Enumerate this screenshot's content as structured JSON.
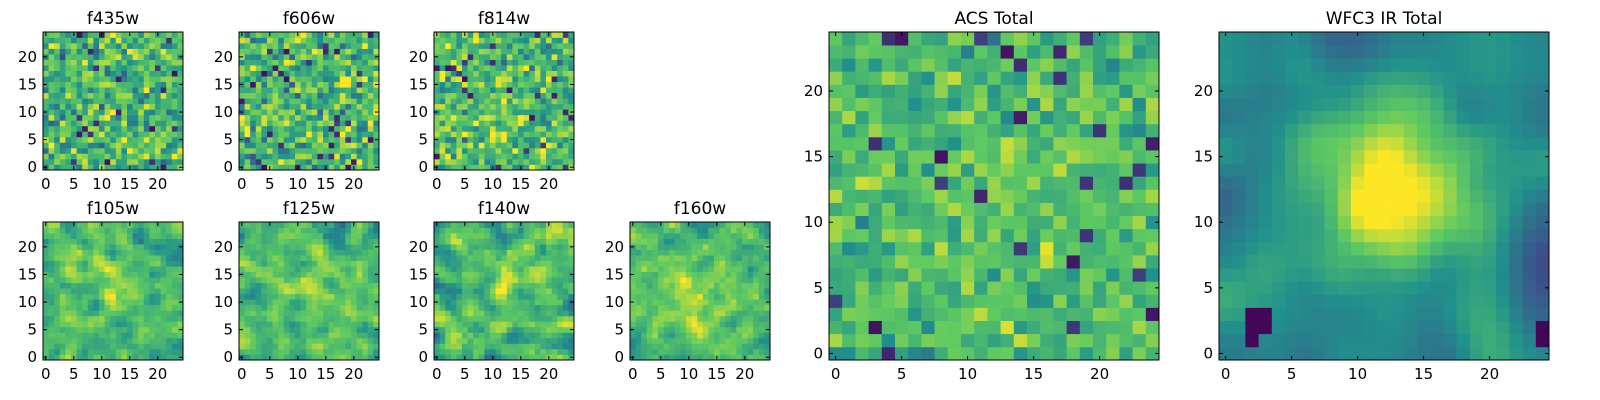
{
  "figure": {
    "colormap": "viridis",
    "colormap_stops": [
      "#440154",
      "#3b528b",
      "#21918c",
      "#5ec962",
      "#fde725"
    ]
  },
  "chart_data": [
    {
      "type": "heatmap",
      "title": "f435w",
      "grid_size": 25,
      "xlim": [
        -0.5,
        24.5
      ],
      "ylim": [
        -0.5,
        24.5
      ],
      "xticks": [
        0,
        5,
        10,
        15,
        20
      ],
      "yticks": [
        0,
        5,
        10,
        15,
        20
      ],
      "pattern": "noise",
      "seed": 11,
      "mean": 0.66,
      "spread": 0.22,
      "blob": 0
    },
    {
      "type": "heatmap",
      "title": "f606w",
      "grid_size": 25,
      "xlim": [
        -0.5,
        24.5
      ],
      "ylim": [
        -0.5,
        24.5
      ],
      "xticks": [
        0,
        5,
        10,
        15,
        20
      ],
      "yticks": [
        0,
        5,
        10,
        15,
        20
      ],
      "pattern": "noise",
      "seed": 23,
      "mean": 0.68,
      "spread": 0.23,
      "blob": 0
    },
    {
      "type": "heatmap",
      "title": "f814w",
      "grid_size": 25,
      "xlim": [
        -0.5,
        24.5
      ],
      "ylim": [
        -0.5,
        24.5
      ],
      "xticks": [
        0,
        5,
        10,
        15,
        20
      ],
      "yticks": [
        0,
        5,
        10,
        15,
        20
      ],
      "pattern": "noise",
      "seed": 37,
      "mean": 0.69,
      "spread": 0.21,
      "blob": 0.05
    },
    {
      "type": "heatmap",
      "title": "f105w",
      "grid_size": 25,
      "xlim": [
        -0.5,
        24.5
      ],
      "ylim": [
        -0.5,
        24.5
      ],
      "xticks": [
        0,
        5,
        10,
        15,
        20
      ],
      "yticks": [
        0,
        5,
        10,
        15,
        20
      ],
      "pattern": "smooth",
      "seed": 41,
      "mean": 0.66,
      "spread": 0.2,
      "blob": 0.1
    },
    {
      "type": "heatmap",
      "title": "f125w",
      "grid_size": 25,
      "xlim": [
        -0.5,
        24.5
      ],
      "ylim": [
        -0.5,
        24.5
      ],
      "xticks": [
        0,
        5,
        10,
        15,
        20
      ],
      "yticks": [
        0,
        5,
        10,
        15,
        20
      ],
      "pattern": "smooth",
      "seed": 53,
      "mean": 0.7,
      "spread": 0.2,
      "blob": 0.05
    },
    {
      "type": "heatmap",
      "title": "f140w",
      "grid_size": 25,
      "xlim": [
        -0.5,
        24.5
      ],
      "ylim": [
        -0.5,
        24.5
      ],
      "xticks": [
        0,
        5,
        10,
        15,
        20
      ],
      "yticks": [
        0,
        5,
        10,
        15,
        20
      ],
      "pattern": "smooth",
      "seed": 67,
      "mean": 0.68,
      "spread": 0.24,
      "blob": 0.12
    },
    {
      "type": "heatmap",
      "title": "f160w",
      "grid_size": 25,
      "xlim": [
        -0.5,
        24.5
      ],
      "ylim": [
        -0.5,
        24.5
      ],
      "xticks": [
        0,
        5,
        10,
        15,
        20
      ],
      "yticks": [
        0,
        5,
        10,
        15,
        20
      ],
      "pattern": "smooth",
      "seed": 79,
      "mean": 0.7,
      "spread": 0.2,
      "blob": 0.1
    },
    {
      "type": "heatmap",
      "title": "ACS Total",
      "grid_size": 25,
      "xlim": [
        -0.5,
        24.5
      ],
      "ylim": [
        -0.5,
        24.5
      ],
      "xticks": [
        0,
        5,
        10,
        15,
        20
      ],
      "yticks": [
        0,
        5,
        10,
        15,
        20
      ],
      "pattern": "noise",
      "seed": 97,
      "mean": 0.68,
      "spread": 0.14,
      "blob": 0.05
    },
    {
      "type": "heatmap",
      "title": "WFC3 IR Total",
      "grid_size": 25,
      "xlim": [
        -0.5,
        24.5
      ],
      "ylim": [
        -0.5,
        24.5
      ],
      "xticks": [
        0,
        5,
        10,
        15,
        20
      ],
      "yticks": [
        0,
        5,
        10,
        15,
        20
      ],
      "pattern": "peak",
      "seed": 131,
      "mean": 0.46,
      "spread": 0.06,
      "blob": 0.5
    }
  ]
}
